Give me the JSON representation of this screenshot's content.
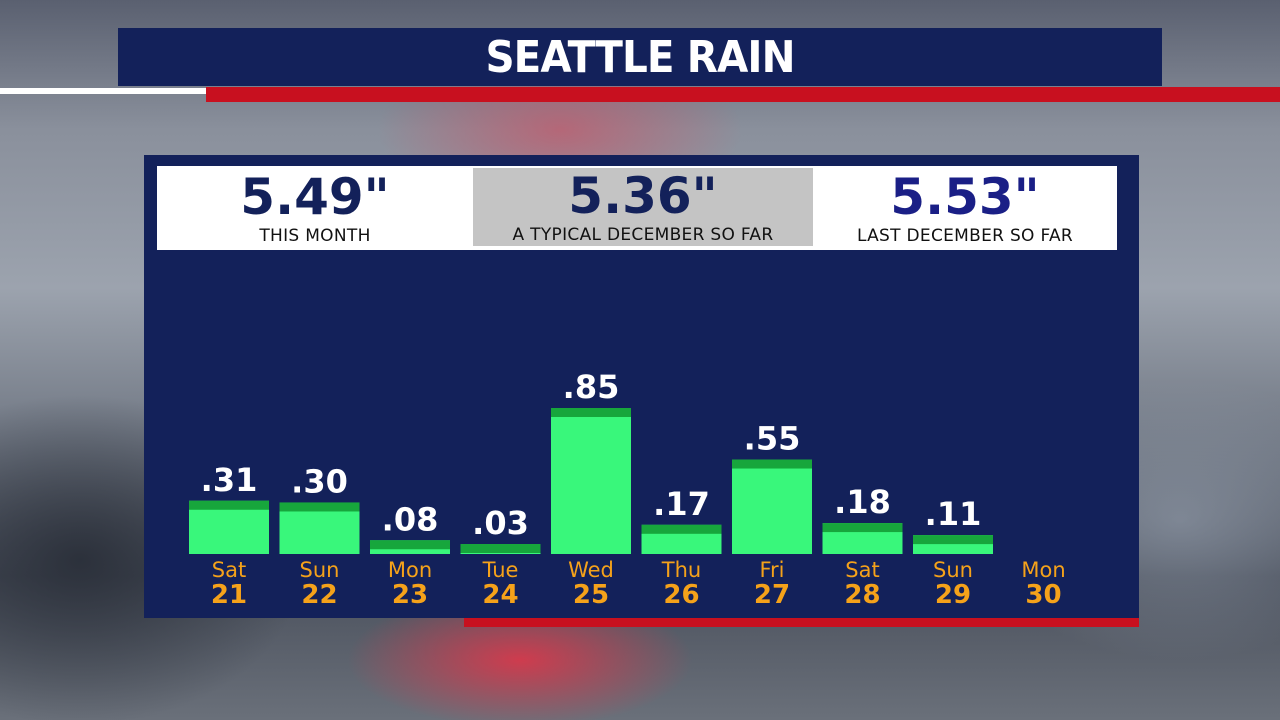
{
  "header": {
    "title": "SEATTLE RAIN"
  },
  "stats": [
    {
      "value": "5.49\"",
      "label": "THIS MONTH"
    },
    {
      "value": "5.36\"",
      "label": "A TYPICAL DECEMBER SO FAR"
    },
    {
      "value": "5.53\"",
      "label": "LAST DECEMBER SO FAR"
    }
  ],
  "chart_data": {
    "type": "bar",
    "categories": [
      {
        "day": "Sat",
        "date": "21"
      },
      {
        "day": "Sun",
        "date": "22"
      },
      {
        "day": "Mon",
        "date": "23"
      },
      {
        "day": "Tue",
        "date": "24"
      },
      {
        "day": "Wed",
        "date": "25"
      },
      {
        "day": "Thu",
        "date": "26"
      },
      {
        "day": "Fri",
        "date": "27"
      },
      {
        "day": "Sat",
        "date": "28"
      },
      {
        "day": "Sun",
        "date": "29"
      },
      {
        "day": "Mon",
        "date": "30"
      }
    ],
    "values": [
      0.31,
      0.3,
      0.08,
      0.03,
      0.85,
      0.17,
      0.55,
      0.18,
      0.11,
      null
    ],
    "value_labels": [
      ".31",
      ".30",
      ".08",
      ".03",
      ".85",
      ".17",
      ".55",
      ".18",
      ".11",
      ""
    ],
    "ylim": [
      0,
      0.85
    ],
    "grid": false,
    "colors": {
      "bar": "#39f77b",
      "bar_top": "#17a63c",
      "value_label": "#ffffff",
      "day_label": "#f5a21a",
      "date_label": "#f5a21a"
    }
  }
}
